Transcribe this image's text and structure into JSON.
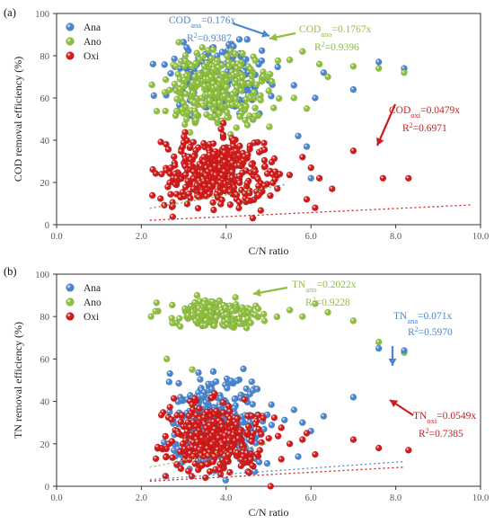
{
  "colors": {
    "Ana": "#4a86d0",
    "Ano": "#8fbf3f",
    "Oxi": "#d11a1a"
  },
  "chart_data": [
    {
      "type": "scatter",
      "panel_label": "(a)",
      "xlabel": "C/N ratio",
      "ylabel": "COD removal efficiency (%)",
      "xlim": [
        0,
        10
      ],
      "ylim": [
        0,
        100
      ],
      "xticks": [
        "0.0",
        "2.0",
        "4.0",
        "6.0",
        "8.0",
        "10.0"
      ],
      "yticks": [
        "0",
        "20",
        "40",
        "60",
        "80",
        "100"
      ],
      "legend": {
        "placement": "top-left",
        "entries": [
          "Ana",
          "Ano",
          "Oxi"
        ]
      },
      "series": [
        {
          "name": "Ana",
          "cloud": {
            "x": [
              2.2,
              5.5
            ],
            "y": [
              48,
              90
            ],
            "count": 180
          },
          "outliers": [
            [
              5.6,
              66
            ],
            [
              6.1,
              60
            ],
            [
              6.3,
              72
            ],
            [
              7.0,
              64
            ],
            [
              7.6,
              77
            ],
            [
              8.2,
              74
            ],
            [
              5.7,
              42
            ],
            [
              5.9,
              37
            ],
            [
              6.0,
              22
            ]
          ],
          "fit": {
            "slope": 0.176,
            "x": [
              2.2,
              5.4
            ]
          }
        },
        {
          "name": "Ano",
          "cloud": {
            "x": [
              2.1,
              5.4
            ],
            "y": [
              40,
              88
            ],
            "count": 300
          },
          "outliers": [
            [
              5.5,
              78
            ],
            [
              5.8,
              82
            ],
            [
              6.2,
              76
            ],
            [
              6.4,
              70
            ],
            [
              7.0,
              75
            ],
            [
              7.6,
              74
            ],
            [
              8.2,
              72
            ],
            [
              5.6,
              60
            ],
            [
              5.9,
              55
            ]
          ],
          "fit": {
            "slope": 0.1767,
            "x": [
              2.2,
              5.2
            ]
          }
        },
        {
          "name": "Oxi",
          "cloud": {
            "x": [
              2.1,
              5.6
            ],
            "y": [
              2,
              48
            ],
            "count": 380
          },
          "outliers": [
            [
              5.8,
              32
            ],
            [
              6.0,
              27
            ],
            [
              6.2,
              22
            ],
            [
              6.5,
              17
            ],
            [
              7.0,
              35
            ],
            [
              7.7,
              22
            ],
            [
              8.3,
              22
            ],
            [
              5.9,
              12
            ],
            [
              6.1,
              8
            ]
          ],
          "fit": {
            "slope": 0.0479,
            "x": [
              2.2,
              9.8
            ]
          }
        }
      ],
      "annotations": [
        {
          "series": "Ana",
          "name": "COD",
          "sub": "ana",
          "value": "=0.176x",
          "r2": "=0.9387"
        },
        {
          "series": "Ano",
          "name": "COD",
          "sub": "ano",
          "value": "=0.1767x",
          "r2": "=0.9396"
        },
        {
          "series": "Oxi",
          "name": "COD",
          "sub": "oxi",
          "value": "=0.0479x",
          "r2": "=0.6971"
        }
      ]
    },
    {
      "type": "scatter",
      "panel_label": "(b)",
      "xlabel": "C/N ratio",
      "ylabel": "TN removal efficiency (%)",
      "xlim": [
        0,
        10
      ],
      "ylim": [
        0,
        100
      ],
      "xticks": [
        "0.0",
        "2.0",
        "4.0",
        "6.0",
        "8.0",
        "10.0"
      ],
      "yticks": [
        "0",
        "20",
        "40",
        "60",
        "80",
        "100"
      ],
      "legend": {
        "placement": "top-left",
        "entries": [
          "Ana",
          "Ano",
          "Oxi"
        ]
      },
      "series": [
        {
          "name": "Ana",
          "cloud": {
            "x": [
              2.2,
              5.4
            ],
            "y": [
              0,
              62
            ],
            "count": 300
          },
          "outliers": [
            [
              5.6,
              36
            ],
            [
              5.8,
              30
            ],
            [
              6.0,
              26
            ],
            [
              6.3,
              33
            ],
            [
              7.0,
              42
            ],
            [
              7.6,
              65
            ],
            [
              8.2,
              64
            ],
            [
              5.7,
              14
            ]
          ],
          "fit": {
            "slope": 0.071,
            "x": [
              2.2,
              8.2
            ]
          }
        },
        {
          "name": "Ano",
          "cloud": {
            "x": [
              2.2,
              5.2
            ],
            "y": [
              72,
              90
            ],
            "count": 180
          },
          "outliers": [
            [
              5.5,
              83
            ],
            [
              5.8,
              80
            ],
            [
              6.1,
              86
            ],
            [
              6.4,
              82
            ],
            [
              7.0,
              78
            ],
            [
              7.6,
              68
            ],
            [
              8.2,
              63
            ],
            [
              2.6,
              60
            ],
            [
              3.2,
              55
            ]
          ],
          "fit": {
            "slope": 0.2022,
            "x": [
              2.2,
              5.0
            ]
          }
        },
        {
          "name": "Oxi",
          "cloud": {
            "x": [
              2.1,
              5.3
            ],
            "y": [
              0,
              46
            ],
            "count": 320
          },
          "outliers": [
            [
              5.5,
              20
            ],
            [
              5.8,
              22
            ],
            [
              6.1,
              15
            ],
            [
              7.0,
              22
            ],
            [
              7.6,
              18
            ],
            [
              8.3,
              17
            ],
            [
              5.9,
              25
            ]
          ],
          "fit": {
            "slope": 0.0549,
            "x": [
              2.2,
              8.2
            ]
          }
        }
      ],
      "annotations": [
        {
          "series": "Ano",
          "name": "TN",
          "sub": "ano",
          "value": "=0.2022x",
          "r2": "=0.9228"
        },
        {
          "series": "Ana",
          "name": "TN",
          "sub": "ana",
          "value": "=0.071x",
          "r2": "=0.5970"
        },
        {
          "series": "Oxi",
          "name": "TN",
          "sub": "oxi",
          "value": "=0.0549x",
          "r2": "=0.7385"
        }
      ]
    }
  ]
}
